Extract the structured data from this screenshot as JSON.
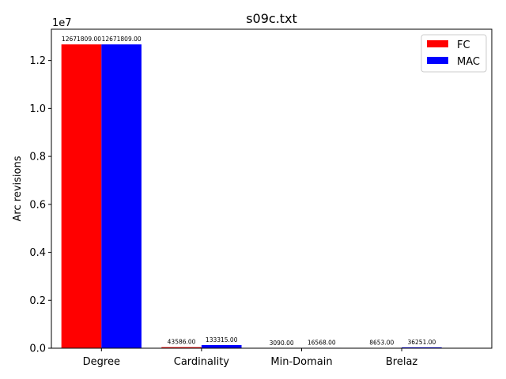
{
  "chart_data": {
    "type": "bar",
    "title": "s09c.txt",
    "xlabel": "",
    "ylabel": "Arc revisions",
    "y_scale_label": "1e7",
    "categories": [
      "Degree",
      "Cardinality",
      "Min-Domain",
      "Brelaz"
    ],
    "series": [
      {
        "name": "FC",
        "color": "#ff0000",
        "values": [
          12671809,
          43586,
          3090,
          8653
        ],
        "labels": [
          "12671809.00",
          "43586.00",
          "3090.00",
          "8653.00"
        ]
      },
      {
        "name": "MAC",
        "color": "#0000ff",
        "values": [
          12671809,
          133315,
          16568,
          36251
        ],
        "labels": [
          "12671809.00",
          "133315.00",
          "16568.00",
          "36251.00"
        ]
      }
    ],
    "y_ticks": [
      0,
      2000000,
      4000000,
      6000000,
      8000000,
      10000000,
      12000000
    ],
    "y_tick_labels": [
      "0.0",
      "0.2",
      "0.4",
      "0.6",
      "0.8",
      "1.0",
      "1.2"
    ],
    "ylim": [
      0,
      13305399
    ],
    "grid": false,
    "legend_position": "upper right"
  }
}
